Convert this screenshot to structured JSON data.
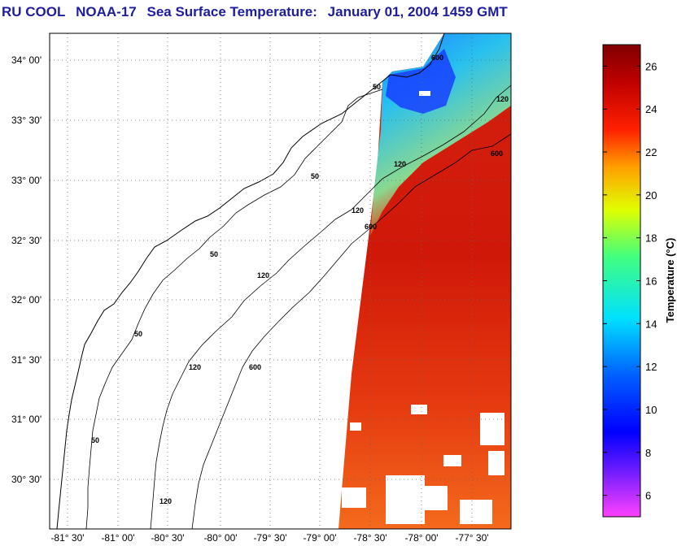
{
  "header": {
    "source": "RU COOL",
    "satellite": "NOAA-17",
    "product": "Sea Surface Temperature:",
    "datetime": "January 01, 2004 1459 GMT"
  },
  "map": {
    "lat_ticks": [
      "34° 00'",
      "33° 30'",
      "33° 00'",
      "32° 30'",
      "32° 00'",
      "31° 30'",
      "31° 00'",
      "30° 30'"
    ],
    "lon_ticks": [
      "-81° 30'",
      "-81° 00'",
      "-80° 30'",
      "-80° 00'",
      "-79° 30'",
      "-79° 00'",
      "-78° 30'",
      "-78° 00'",
      "-77° 30'"
    ],
    "contour_labels": [
      "50",
      "50",
      "50",
      "50",
      "50",
      "120",
      "120",
      "120",
      "120",
      "120",
      "120",
      "600",
      "600",
      "600",
      "600"
    ]
  },
  "colorbar": {
    "title": "Temperature (°C)",
    "ticks": [
      "26",
      "24",
      "22",
      "20",
      "18",
      "16",
      "14",
      "12",
      "10",
      "8",
      "6"
    ],
    "min": 5,
    "max": 27,
    "colors": [
      "#ff00ff",
      "#0000ff",
      "#00ffff",
      "#ffff00",
      "#ff0000",
      "#800000"
    ]
  }
}
